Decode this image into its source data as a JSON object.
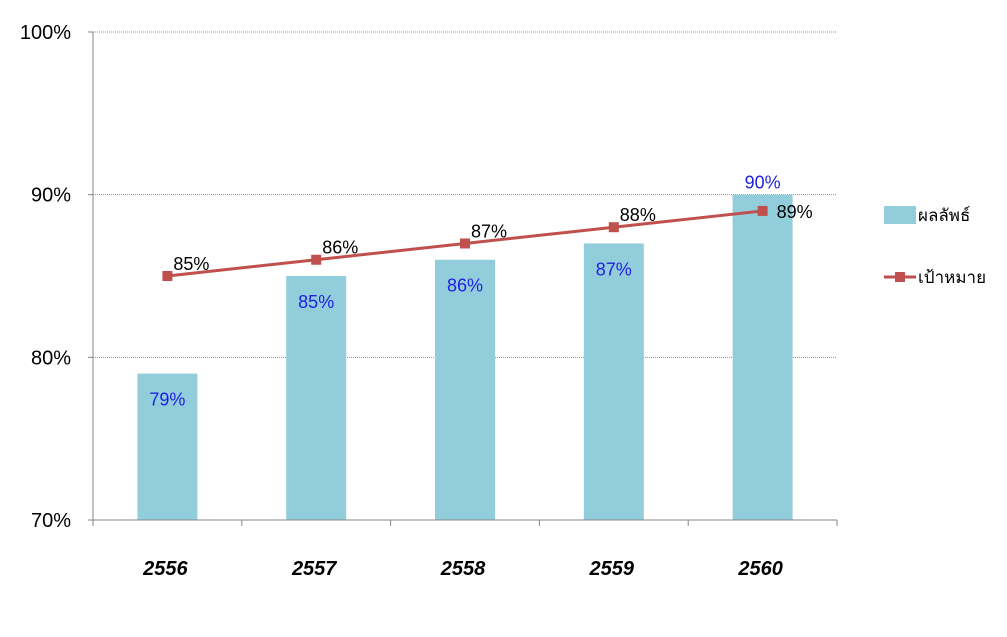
{
  "chart_data": {
    "type": "bar",
    "categories": [
      "2556",
      "2557",
      "2558",
      "2559",
      "2560"
    ],
    "series": [
      {
        "name": "ผลลัพธ์",
        "type": "bar",
        "values": [
          79,
          85,
          86,
          87,
          90
        ],
        "labels": [
          "79%",
          "85%",
          "86%",
          "87%",
          "90%"
        ],
        "color": "#92CDDC",
        "label_color": "#1F1FE0"
      },
      {
        "name": "เป้าหมาย",
        "type": "line",
        "values": [
          85,
          86,
          87,
          88,
          89
        ],
        "labels": [
          "85%",
          "86%",
          "87%",
          "88%",
          "89%"
        ],
        "color": "#C0504D",
        "label_color": "#000000"
      }
    ],
    "ylim": [
      70,
      100
    ],
    "yticks": [
      70,
      80,
      90,
      100
    ],
    "ytick_labels": [
      "70%",
      "80%",
      "90%",
      "100%"
    ],
    "grid": true,
    "legend_position": "right"
  }
}
